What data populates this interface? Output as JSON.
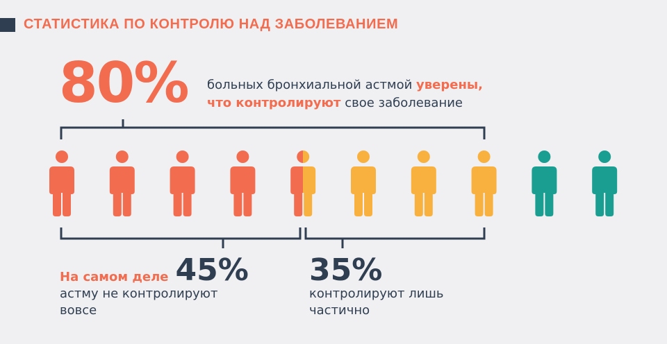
{
  "header": {
    "title": "СТАТИСТИКА ПО КОНТРОЛЮ НАД ЗАБОЛЕВАНИЕМ"
  },
  "headline": {
    "percent": "80%",
    "text_before": "больных бронхиальной астмой ",
    "highlight_1": "уверены,",
    "highlight_2": "что контролируют",
    "text_after": " свое заболевание"
  },
  "stats": {
    "left": {
      "lead": "На самом деле",
      "percent": "45%",
      "line1": "астму не контролируют",
      "line2": "вовсе"
    },
    "right": {
      "percent": "35%",
      "line1": "контролируют лишь",
      "line2": "частично"
    }
  },
  "colors": {
    "coral": "#f26c50",
    "amber": "#f8b13e",
    "teal": "#1a9e92",
    "navy": "#2f3e51"
  },
  "chart_data": {
    "type": "pictogram",
    "total": 10,
    "groups": [
      {
        "value": 4.5,
        "color": "#f26c50"
      },
      {
        "value": 3.5,
        "color": "#f8b13e"
      },
      {
        "value": 2,
        "color": "#1a9e92"
      }
    ]
  }
}
